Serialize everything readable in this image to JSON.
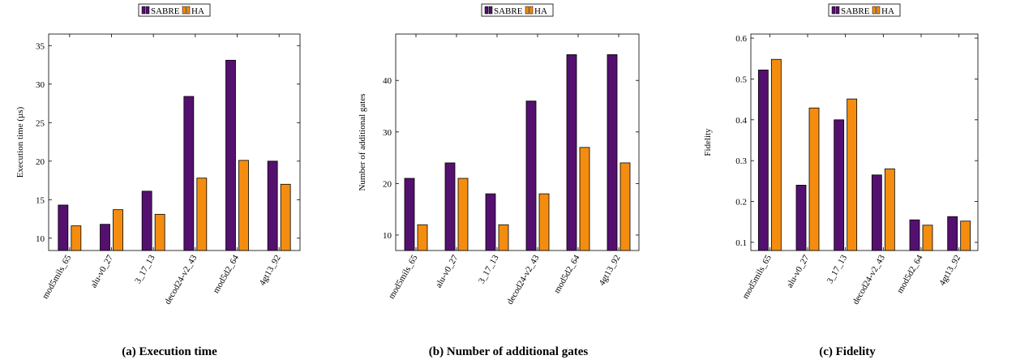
{
  "colors": {
    "sabre": "#54106e",
    "ha": "#f48d0f"
  },
  "legend": {
    "entries": [
      "SABRE",
      "HA"
    ]
  },
  "chart_data": [
    {
      "type": "bar",
      "caption_tag": "(a)",
      "caption_text": "Execution time",
      "xlabel": "",
      "ylabel": "Execution time (µs)",
      "ylim": [
        8.4,
        36.5
      ],
      "yticks": [
        10,
        15,
        20,
        25,
        30,
        35
      ],
      "categories": [
        "mod5mils_65",
        "alu-v0_27",
        "3_17_13",
        "decod24-v2_43",
        "mod5d2_64",
        "4gt13_92"
      ],
      "series": [
        {
          "name": "SABRE",
          "values": [
            14.3,
            11.8,
            16.1,
            28.4,
            33.1,
            20.0
          ]
        },
        {
          "name": "HA",
          "values": [
            11.6,
            13.7,
            13.1,
            17.8,
            20.1,
            17.0
          ]
        }
      ],
      "grid": false,
      "legend_position": "top-center"
    },
    {
      "type": "bar",
      "caption_tag": "(b)",
      "caption_text": "Number of additional gates",
      "xlabel": "",
      "ylabel": "Number of additional gates",
      "ylim": [
        7.0,
        49.0
      ],
      "yticks": [
        10,
        20,
        30,
        40
      ],
      "categories": [
        "mod5mils_65",
        "alu-v0_27",
        "3_17_13",
        "decod24-v2_43",
        "mod5d2_64",
        "4gt13_92"
      ],
      "series": [
        {
          "name": "SABRE",
          "values": [
            21,
            24,
            18,
            36,
            45,
            45
          ]
        },
        {
          "name": "HA",
          "values": [
            12,
            21,
            12,
            18,
            27,
            24
          ]
        }
      ],
      "grid": false,
      "legend_position": "top-center"
    },
    {
      "type": "bar",
      "caption_tag": "(c)",
      "caption_text": "Fidelity",
      "xlabel": "",
      "ylabel": "Fidelity",
      "ylim": [
        0.08,
        0.61
      ],
      "yticks": [
        0.1,
        0.2,
        0.3,
        0.4,
        0.5,
        0.6
      ],
      "categories": [
        "mod5mils_65",
        "alu-v0_27",
        "3_17_13",
        "decod24-v2_43",
        "mod5d2_64",
        "4gt13_92"
      ],
      "series": [
        {
          "name": "SABRE",
          "values": [
            0.522,
            0.24,
            0.4,
            0.265,
            0.155,
            0.163
          ]
        },
        {
          "name": "HA",
          "values": [
            0.548,
            0.429,
            0.451,
            0.28,
            0.142,
            0.152
          ]
        }
      ],
      "grid": false,
      "legend_position": "top-center"
    }
  ]
}
